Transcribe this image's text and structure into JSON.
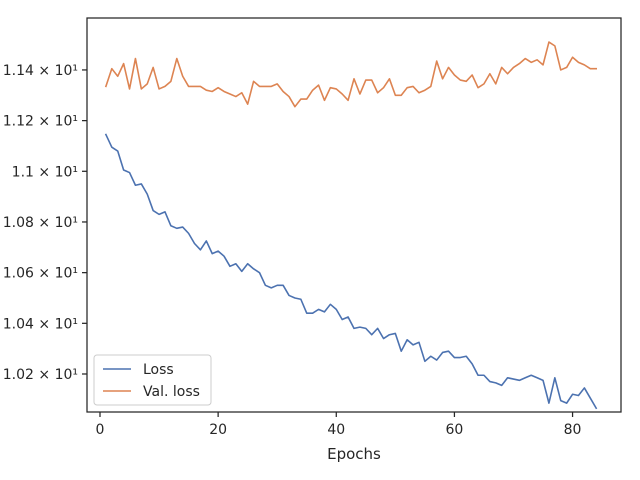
{
  "chart_data": {
    "type": "line",
    "xlabel": "Epochs",
    "ylabel": "",
    "xlim": [
      -2.2,
      88.2
    ],
    "ylim": [
      10.005,
      10.1605
    ],
    "xticks": [
      0,
      20,
      40,
      60,
      80
    ],
    "xtick_labels": [
      "0",
      "20",
      "40",
      "60",
      "80"
    ],
    "yticks": [
      10.02,
      10.04,
      10.06,
      10.08,
      10.1,
      10.12,
      10.14
    ],
    "ytick_labels": [
      "1.02 × 10¹",
      "1.04 × 10¹",
      "1.06 × 10¹",
      "1.08 × 10¹",
      "1.1 × 10¹",
      "1.12 × 10¹",
      "1.14 × 10¹"
    ],
    "legend_placement": "lower-left",
    "grid": false,
    "series": [
      {
        "name": "Loss",
        "color": "#4c72b0",
        "x": [
          1,
          2,
          3,
          4,
          5,
          6,
          7,
          8,
          9,
          10,
          11,
          12,
          13,
          14,
          15,
          16,
          17,
          18,
          19,
          20,
          21,
          22,
          23,
          24,
          25,
          26,
          27,
          28,
          29,
          30,
          31,
          32,
          33,
          34,
          35,
          36,
          37,
          38,
          39,
          40,
          41,
          42,
          43,
          44,
          45,
          46,
          47,
          48,
          49,
          50,
          51,
          52,
          53,
          54,
          55,
          56,
          57,
          58,
          59,
          60,
          61,
          62,
          63,
          64,
          65,
          66,
          67,
          68,
          69,
          70,
          71,
          72,
          73,
          74,
          75,
          76,
          77,
          78,
          79,
          80,
          81,
          82,
          83,
          84
        ],
        "values": [
          10.1145,
          10.1095,
          10.108,
          10.1005,
          10.0995,
          10.0945,
          10.095,
          10.091,
          10.0845,
          10.083,
          10.084,
          10.0785,
          10.0775,
          10.078,
          10.0755,
          10.0715,
          10.069,
          10.0725,
          10.0675,
          10.0685,
          10.0665,
          10.0625,
          10.0635,
          10.0605,
          10.0635,
          10.0615,
          10.06,
          10.055,
          10.054,
          10.055,
          10.055,
          10.051,
          10.05,
          10.0495,
          10.044,
          10.044,
          10.0455,
          10.0445,
          10.0475,
          10.0455,
          10.0415,
          10.0425,
          10.038,
          10.0385,
          10.038,
          10.0355,
          10.038,
          10.034,
          10.0355,
          10.036,
          10.029,
          10.0335,
          10.0315,
          10.0325,
          10.025,
          10.027,
          10.0255,
          10.0285,
          10.029,
          10.0265,
          10.0265,
          10.027,
          10.024,
          10.0195,
          10.0195,
          10.017,
          10.0165,
          10.0155,
          10.0185,
          10.018,
          10.0175,
          10.0185,
          10.0195,
          10.0185,
          10.0175,
          10.0085,
          10.0185,
          10.0095,
          10.0085,
          10.012,
          10.0115,
          10.0145,
          10.0105,
          10.0065
        ]
      },
      {
        "name": "Val. loss",
        "color": "#dd8452",
        "x": [
          1,
          2,
          3,
          4,
          5,
          6,
          7,
          8,
          9,
          10,
          11,
          12,
          13,
          14,
          15,
          16,
          17,
          18,
          19,
          20,
          21,
          22,
          23,
          24,
          25,
          26,
          27,
          28,
          29,
          30,
          31,
          32,
          33,
          34,
          35,
          36,
          37,
          38,
          39,
          40,
          41,
          42,
          43,
          44,
          45,
          46,
          47,
          48,
          49,
          50,
          51,
          52,
          53,
          54,
          55,
          56,
          57,
          58,
          59,
          60,
          61,
          62,
          63,
          64,
          65,
          66,
          67,
          68,
          69,
          70,
          71,
          72,
          73,
          74,
          75,
          76,
          77,
          78,
          79,
          80,
          81,
          82,
          83,
          84
        ],
        "values": [
          10.1335,
          10.1405,
          10.1375,
          10.1425,
          10.1325,
          10.1445,
          10.1325,
          10.1345,
          10.141,
          10.1325,
          10.1335,
          10.1355,
          10.1445,
          10.1375,
          10.1335,
          10.1335,
          10.1335,
          10.132,
          10.1315,
          10.133,
          10.1315,
          10.1305,
          10.1295,
          10.131,
          10.1265,
          10.1355,
          10.1335,
          10.1335,
          10.1335,
          10.1345,
          10.1315,
          10.1295,
          10.1255,
          10.1285,
          10.1285,
          10.132,
          10.134,
          10.128,
          10.133,
          10.1325,
          10.1305,
          10.128,
          10.1365,
          10.1305,
          10.136,
          10.136,
          10.131,
          10.133,
          10.1365,
          10.13,
          10.13,
          10.133,
          10.1335,
          10.131,
          10.132,
          10.1335,
          10.1435,
          10.1365,
          10.141,
          10.138,
          10.136,
          10.1355,
          10.138,
          10.133,
          10.1345,
          10.1385,
          10.1345,
          10.141,
          10.1385,
          10.141,
          10.1425,
          10.1445,
          10.143,
          10.144,
          10.142,
          10.151,
          10.1495,
          10.14,
          10.141,
          10.145,
          10.143,
          10.142,
          10.1405,
          10.1405
        ]
      }
    ]
  }
}
